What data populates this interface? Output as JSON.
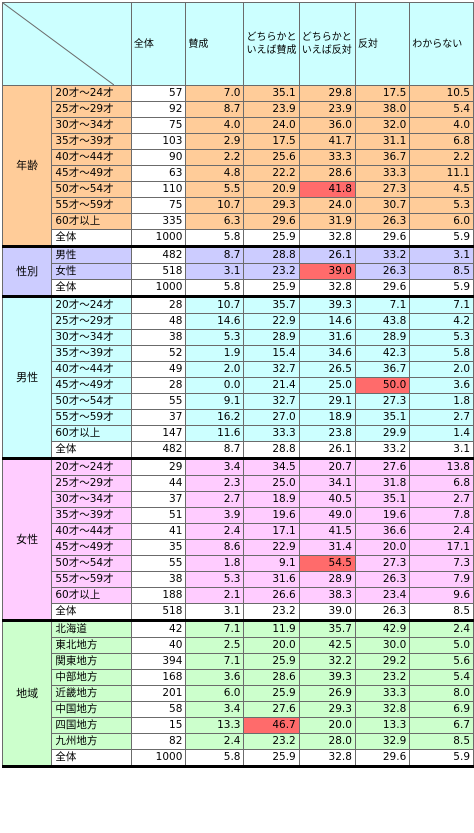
{
  "headers": {
    "col_total": "全体",
    "col_agree": "賛成",
    "col_lean_agree_1": "どちらかと",
    "col_lean_agree_2": "いえば賛成",
    "col_lean_oppose_1": "どちらかと",
    "col_lean_oppose_2": "いえば反対",
    "col_oppose": "反対",
    "col_unknown": "わからない"
  },
  "colors": {
    "age": "#ffcc99",
    "sex": "#ccccff",
    "male": "#ccffff",
    "female": "#ffccff",
    "region": "#ccffcc",
    "highlight": "#ff6b6b"
  },
  "sections": [
    {
      "label": "年齢",
      "color": "#ffcc99",
      "rows": [
        {
          "label": "20才～24才",
          "n": "57",
          "v": [
            "7.0",
            "35.1",
            "29.8",
            "17.5",
            "10.5"
          ]
        },
        {
          "label": "25才～29才",
          "n": "92",
          "v": [
            "8.7",
            "23.9",
            "23.9",
            "38.0",
            "5.4"
          ]
        },
        {
          "label": "30才～34才",
          "n": "75",
          "v": [
            "4.0",
            "24.0",
            "36.0",
            "32.0",
            "4.0"
          ]
        },
        {
          "label": "35才～39才",
          "n": "103",
          "v": [
            "2.9",
            "17.5",
            "41.7",
            "31.1",
            "6.8"
          ]
        },
        {
          "label": "40才～44才",
          "n": "90",
          "v": [
            "2.2",
            "25.6",
            "33.3",
            "36.7",
            "2.2"
          ]
        },
        {
          "label": "45才～49才",
          "n": "63",
          "v": [
            "4.8",
            "22.2",
            "28.6",
            "33.3",
            "11.1"
          ]
        },
        {
          "label": "50才～54才",
          "n": "110",
          "v": [
            "5.5",
            "20.9",
            "41.8",
            "27.3",
            "4.5"
          ],
          "hl": [
            2
          ]
        },
        {
          "label": "55才～59才",
          "n": "75",
          "v": [
            "10.7",
            "29.3",
            "24.0",
            "30.7",
            "5.3"
          ]
        },
        {
          "label": "60才以上",
          "n": "335",
          "v": [
            "6.3",
            "29.6",
            "31.9",
            "26.3",
            "6.0"
          ]
        }
      ],
      "total": {
        "label": "全体",
        "n": "1000",
        "v": [
          "5.8",
          "25.9",
          "32.8",
          "29.6",
          "5.9"
        ]
      }
    },
    {
      "label": "性別",
      "color": "#ccccff",
      "rows": [
        {
          "label": "男性",
          "n": "482",
          "v": [
            "8.7",
            "28.8",
            "26.1",
            "33.2",
            "3.1"
          ]
        },
        {
          "label": "女性",
          "n": "518",
          "v": [
            "3.1",
            "23.2",
            "39.0",
            "26.3",
            "8.5"
          ],
          "hl": [
            2
          ]
        }
      ],
      "total": {
        "label": "全体",
        "n": "1000",
        "v": [
          "5.8",
          "25.9",
          "32.8",
          "29.6",
          "5.9"
        ]
      }
    },
    {
      "label": "男性",
      "color": "#ccffff",
      "rows": [
        {
          "label": "20才～24才",
          "n": "28",
          "v": [
            "10.7",
            "35.7",
            "39.3",
            "7.1",
            "7.1"
          ]
        },
        {
          "label": "25才～29才",
          "n": "48",
          "v": [
            "14.6",
            "22.9",
            "14.6",
            "43.8",
            "4.2"
          ]
        },
        {
          "label": "30才～34才",
          "n": "38",
          "v": [
            "5.3",
            "28.9",
            "31.6",
            "28.9",
            "5.3"
          ]
        },
        {
          "label": "35才～39才",
          "n": "52",
          "v": [
            "1.9",
            "15.4",
            "34.6",
            "42.3",
            "5.8"
          ]
        },
        {
          "label": "40才～44才",
          "n": "49",
          "v": [
            "2.0",
            "32.7",
            "26.5",
            "36.7",
            "2.0"
          ]
        },
        {
          "label": "45才～49才",
          "n": "28",
          "v": [
            "0.0",
            "21.4",
            "25.0",
            "50.0",
            "3.6"
          ],
          "hl": [
            3
          ]
        },
        {
          "label": "50才～54才",
          "n": "55",
          "v": [
            "9.1",
            "32.7",
            "29.1",
            "27.3",
            "1.8"
          ]
        },
        {
          "label": "55才～59才",
          "n": "37",
          "v": [
            "16.2",
            "27.0",
            "18.9",
            "35.1",
            "2.7"
          ]
        },
        {
          "label": "60才以上",
          "n": "147",
          "v": [
            "11.6",
            "33.3",
            "23.8",
            "29.9",
            "1.4"
          ]
        }
      ],
      "total": {
        "label": "全体",
        "n": "482",
        "v": [
          "8.7",
          "28.8",
          "26.1",
          "33.2",
          "3.1"
        ]
      }
    },
    {
      "label": "女性",
      "color": "#ffccff",
      "rows": [
        {
          "label": "20才～24才",
          "n": "29",
          "v": [
            "3.4",
            "34.5",
            "20.7",
            "27.6",
            "13.8"
          ]
        },
        {
          "label": "25才～29才",
          "n": "44",
          "v": [
            "2.3",
            "25.0",
            "34.1",
            "31.8",
            "6.8"
          ]
        },
        {
          "label": "30才～34才",
          "n": "37",
          "v": [
            "2.7",
            "18.9",
            "40.5",
            "35.1",
            "2.7"
          ]
        },
        {
          "label": "35才～39才",
          "n": "51",
          "v": [
            "3.9",
            "19.6",
            "49.0",
            "19.6",
            "7.8"
          ]
        },
        {
          "label": "40才～44才",
          "n": "41",
          "v": [
            "2.4",
            "17.1",
            "41.5",
            "36.6",
            "2.4"
          ]
        },
        {
          "label": "45才～49才",
          "n": "35",
          "v": [
            "8.6",
            "22.9",
            "31.4",
            "20.0",
            "17.1"
          ]
        },
        {
          "label": "50才～54才",
          "n": "55",
          "v": [
            "1.8",
            "9.1",
            "54.5",
            "27.3",
            "7.3"
          ],
          "hl": [
            2
          ]
        },
        {
          "label": "55才～59才",
          "n": "38",
          "v": [
            "5.3",
            "31.6",
            "28.9",
            "26.3",
            "7.9"
          ]
        },
        {
          "label": "60才以上",
          "n": "188",
          "v": [
            "2.1",
            "26.6",
            "38.3",
            "23.4",
            "9.6"
          ]
        }
      ],
      "total": {
        "label": "全体",
        "n": "518",
        "v": [
          "3.1",
          "23.2",
          "39.0",
          "26.3",
          "8.5"
        ]
      }
    },
    {
      "label": "地域",
      "color": "#ccffcc",
      "rows": [
        {
          "label": "北海道",
          "n": "42",
          "v": [
            "7.1",
            "11.9",
            "35.7",
            "42.9",
            "2.4"
          ]
        },
        {
          "label": "東北地方",
          "n": "40",
          "v": [
            "2.5",
            "20.0",
            "42.5",
            "30.0",
            "5.0"
          ]
        },
        {
          "label": "関東地方",
          "n": "394",
          "v": [
            "7.1",
            "25.9",
            "32.2",
            "29.2",
            "5.6"
          ]
        },
        {
          "label": "中部地方",
          "n": "168",
          "v": [
            "3.6",
            "28.6",
            "39.3",
            "23.2",
            "5.4"
          ]
        },
        {
          "label": "近畿地方",
          "n": "201",
          "v": [
            "6.0",
            "25.9",
            "26.9",
            "33.3",
            "8.0"
          ]
        },
        {
          "label": "中国地方",
          "n": "58",
          "v": [
            "3.4",
            "27.6",
            "29.3",
            "32.8",
            "6.9"
          ]
        },
        {
          "label": "四国地方",
          "n": "15",
          "v": [
            "13.3",
            "46.7",
            "20.0",
            "13.3",
            "6.7"
          ],
          "hl": [
            1
          ]
        },
        {
          "label": "九州地方",
          "n": "82",
          "v": [
            "2.4",
            "23.2",
            "28.0",
            "32.9",
            "8.5"
          ]
        }
      ],
      "total": {
        "label": "全体",
        "n": "1000",
        "v": [
          "5.8",
          "25.9",
          "32.8",
          "29.6",
          "5.9"
        ]
      }
    }
  ]
}
